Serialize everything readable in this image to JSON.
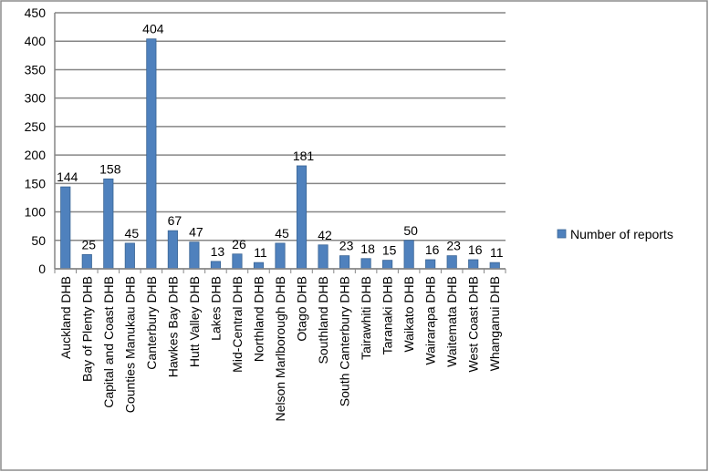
{
  "chart_data": {
    "type": "bar",
    "categories": [
      "Auckland DHB",
      "Bay of Plenty DHB",
      "Capital and Coast DHB",
      "Counties Manukau DHB",
      "Canterbury DHB",
      "Hawkes Bay DHB",
      "Hutt Valley DHB",
      "Lakes DHB",
      "Mid-Central DHB",
      "Northland DHB",
      "Nelson Marlborough DHB",
      "Otago DHB",
      "Southland DHB",
      "South Canterbury DHB",
      "Tairawhiti DHB",
      "Taranaki DHB",
      "Waikato DHB",
      "Wairarapa DHB",
      "Waitemata DHB",
      "West Coast DHB",
      "Whanganui DHB"
    ],
    "series": [
      {
        "name": "Number of reports",
        "color": "#4f81bd",
        "values": [
          144,
          25,
          158,
          45,
          404,
          67,
          47,
          13,
          26,
          11,
          45,
          181,
          42,
          23,
          18,
          15,
          50,
          16,
          23,
          16,
          11
        ]
      }
    ],
    "ylim": [
      0,
      450
    ],
    "yticks": [
      0,
      50,
      100,
      150,
      200,
      250,
      300,
      350,
      400,
      450
    ],
    "grid": true,
    "legend": "right"
  }
}
